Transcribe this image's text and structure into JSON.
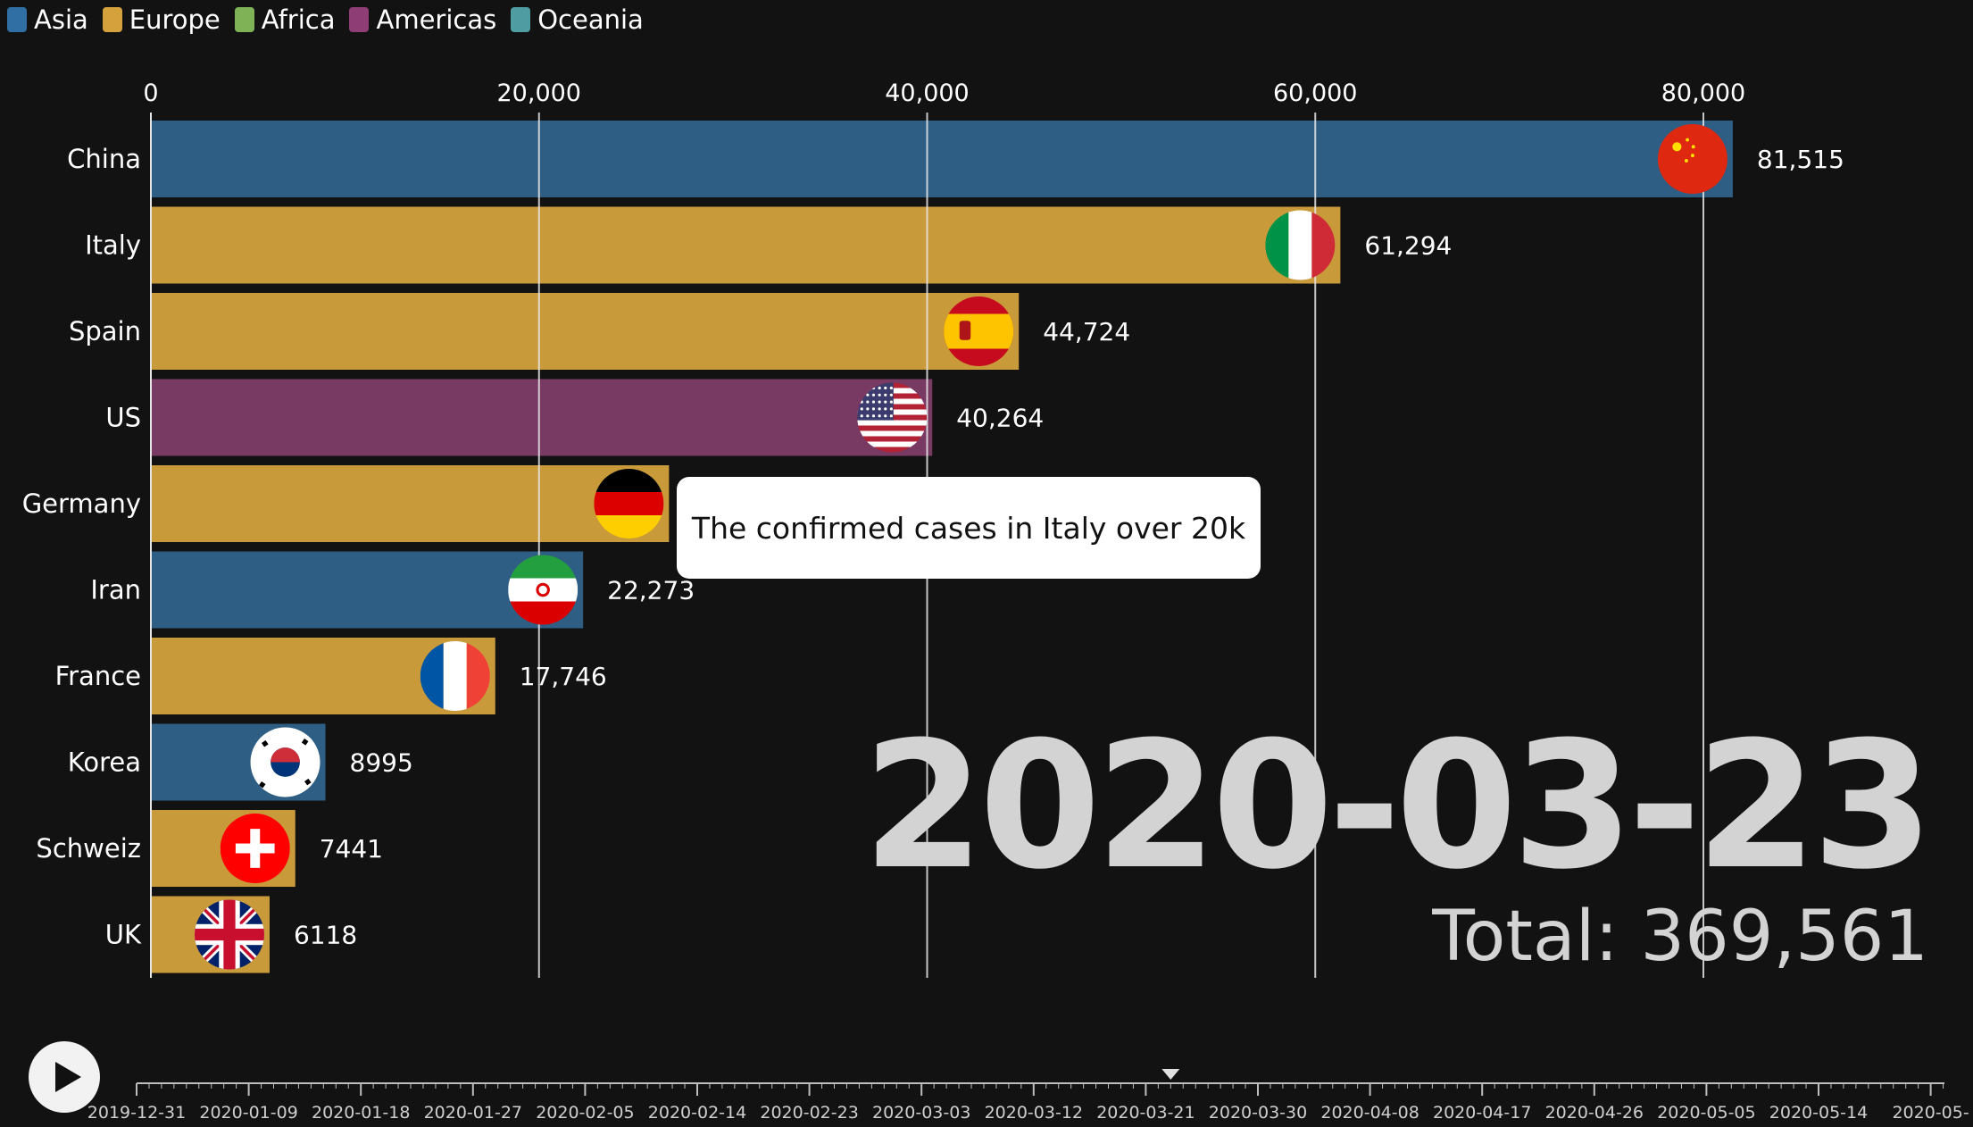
{
  "legend": [
    {
      "label": "Asia",
      "color": "#2f6fa3"
    },
    {
      "label": "Europe",
      "color": "#d5a13d"
    },
    {
      "label": "Africa",
      "color": "#7fb257"
    },
    {
      "label": "Americas",
      "color": "#8f3e75"
    },
    {
      "label": "Oceania",
      "color": "#4f9da3"
    }
  ],
  "chart_data": {
    "type": "bar",
    "orientation": "horizontal",
    "x_ticks": [
      "0",
      "20,000",
      "40,000",
      "60,000",
      "80,000"
    ],
    "xlim": [
      0,
      84000
    ],
    "grid": true,
    "legend_position": "top-left",
    "series": [
      {
        "category": "China",
        "value": 81515,
        "value_label": "81,515",
        "region": "Asia",
        "flag": "china-flag",
        "color": "#2e5e84"
      },
      {
        "category": "Italy",
        "value": 61294,
        "value_label": "61,294",
        "region": "Europe",
        "flag": "italy-flag",
        "color": "#c99a3a"
      },
      {
        "category": "Spain",
        "value": 44724,
        "value_label": "44,724",
        "region": "Europe",
        "flag": "spain-flag",
        "color": "#c99a3a"
      },
      {
        "category": "US",
        "value": 40264,
        "value_label": "40,264",
        "region": "Americas",
        "flag": "us-flag",
        "color": "#783963"
      },
      {
        "category": "Germany",
        "value": 26700,
        "value_label": "",
        "region": "Europe",
        "flag": "germany-flag",
        "color": "#c99a3a"
      },
      {
        "category": "Iran",
        "value": 22273,
        "value_label": "22,273",
        "region": "Asia",
        "flag": "iran-flag",
        "color": "#2e5e84"
      },
      {
        "category": "France",
        "value": 17746,
        "value_label": "17,746",
        "region": "Europe",
        "flag": "france-flag",
        "color": "#c99a3a"
      },
      {
        "category": "Korea",
        "value": 8995,
        "value_label": "8995",
        "region": "Asia",
        "flag": "korea-flag",
        "color": "#2e5e84"
      },
      {
        "category": "Schweiz",
        "value": 7441,
        "value_label": "7441",
        "region": "Europe",
        "flag": "switzerland-flag",
        "color": "#c99a3a"
      },
      {
        "category": "UK",
        "value": 6118,
        "value_label": "6118",
        "region": "Europe",
        "flag": "uk-flag",
        "color": "#c99a3a"
      }
    ]
  },
  "annotation": {
    "text": "The confirmed cases in Italy over 20k"
  },
  "date_display": "2020-03-23",
  "total_display": "Total: 369,561",
  "timeline": {
    "labels": [
      "2019-12-31",
      "2020-01-09",
      "2020-01-18",
      "2020-01-27",
      "2020-02-05",
      "2020-02-14",
      "2020-02-23",
      "2020-03-03",
      "2020-03-12",
      "2020-03-21",
      "2020-03-30",
      "2020-04-08",
      "2020-04-17",
      "2020-04-26",
      "2020-05-05",
      "2020-05-14",
      "2020-05-"
    ],
    "current": "2020-03-23"
  }
}
